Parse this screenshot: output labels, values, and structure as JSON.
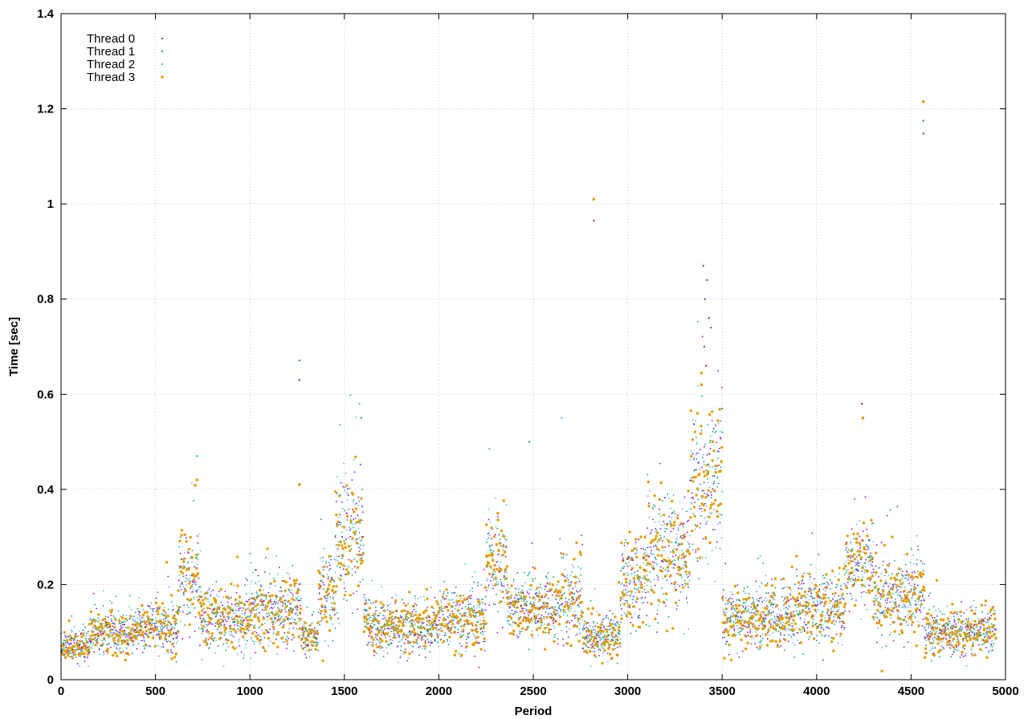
{
  "chart_data": {
    "type": "scatter",
    "title": "",
    "xlabel": "Period",
    "ylabel": "Time [sec]",
    "xlim": [
      0,
      5000
    ],
    "ylim": [
      0,
      1.4
    ],
    "xticks": [
      "0",
      "500",
      "1000",
      "1500",
      "2000",
      "2500",
      "3000",
      "3500",
      "4000",
      "4500",
      "5000"
    ],
    "yticks": [
      "0",
      "0.2",
      "0.4",
      "0.6",
      "0.8",
      "1",
      "1.2",
      "1.4"
    ],
    "grid": true,
    "legend_position": "top-left",
    "n_periods": 4950,
    "series": [
      {
        "name": "Thread 0",
        "color": "#9400d3",
        "marker": "dot-small"
      },
      {
        "name": "Thread 1",
        "color": "#009e73",
        "marker": "dot-small"
      },
      {
        "name": "Thread 2",
        "color": "#56b4e9",
        "marker": "dot-small"
      },
      {
        "name": "Thread 3",
        "color": "#e69f00",
        "marker": "dot-large"
      }
    ],
    "regimes": [
      {
        "x": [
          0,
          150
        ],
        "median": 0.07,
        "spread": 0.03
      },
      {
        "x": [
          150,
          400
        ],
        "median": 0.1,
        "spread": 0.04
      },
      {
        "x": [
          400,
          620
        ],
        "median": 0.115,
        "spread": 0.045
      },
      {
        "x": [
          620,
          740
        ],
        "median": 0.2,
        "spread": 0.09
      },
      {
        "x": [
          740,
          1000
        ],
        "median": 0.13,
        "spread": 0.06
      },
      {
        "x": [
          1000,
          1270
        ],
        "median": 0.15,
        "spread": 0.07
      },
      {
        "x": [
          1270,
          1360
        ],
        "median": 0.09,
        "spread": 0.03
      },
      {
        "x": [
          1360,
          1450
        ],
        "median": 0.17,
        "spread": 0.08
      },
      {
        "x": [
          1450,
          1600
        ],
        "median": 0.3,
        "spread": 0.12
      },
      {
        "x": [
          1600,
          1650
        ],
        "median": 0.12,
        "spread": 0.05
      },
      {
        "x": [
          1650,
          2000
        ],
        "median": 0.11,
        "spread": 0.05
      },
      {
        "x": [
          2000,
          2250
        ],
        "median": 0.13,
        "spread": 0.06
      },
      {
        "x": [
          2250,
          2360
        ],
        "median": 0.24,
        "spread": 0.09
      },
      {
        "x": [
          2360,
          2640
        ],
        "median": 0.15,
        "spread": 0.06
      },
      {
        "x": [
          2640,
          2760
        ],
        "median": 0.17,
        "spread": 0.08
      },
      {
        "x": [
          2760,
          2960
        ],
        "median": 0.09,
        "spread": 0.04
      },
      {
        "x": [
          2960,
          3100
        ],
        "median": 0.2,
        "spread": 0.09
      },
      {
        "x": [
          3100,
          3260
        ],
        "median": 0.27,
        "spread": 0.12
      },
      {
        "x": [
          3260,
          3330
        ],
        "median": 0.25,
        "spread": 0.1
      },
      {
        "x": [
          3330,
          3500
        ],
        "median": 0.42,
        "spread": 0.15
      },
      {
        "x": [
          3500,
          3880
        ],
        "median": 0.13,
        "spread": 0.06
      },
      {
        "x": [
          3880,
          4150
        ],
        "median": 0.15,
        "spread": 0.07
      },
      {
        "x": [
          4150,
          4300
        ],
        "median": 0.24,
        "spread": 0.08
      },
      {
        "x": [
          4300,
          4570
        ],
        "median": 0.18,
        "spread": 0.08
      },
      {
        "x": [
          4570,
          4950
        ],
        "median": 0.1,
        "spread": 0.045
      }
    ],
    "outliers": [
      {
        "x": 1262,
        "y": 0.671,
        "series": 1
      },
      {
        "x": 1262,
        "y": 0.63,
        "series": 0
      },
      {
        "x": 1262,
        "y": 0.41,
        "series": 3
      },
      {
        "x": 2820,
        "y": 1.01,
        "series": 3
      },
      {
        "x": 2820,
        "y": 0.965,
        "series": 0
      },
      {
        "x": 4565,
        "y": 1.215,
        "series": 3
      },
      {
        "x": 4565,
        "y": 1.175,
        "series": 1
      },
      {
        "x": 4565,
        "y": 1.148,
        "series": 0
      },
      {
        "x": 3400,
        "y": 0.87,
        "series": 0
      },
      {
        "x": 3420,
        "y": 0.84,
        "series": 0
      },
      {
        "x": 3410,
        "y": 0.8,
        "series": 0
      },
      {
        "x": 3430,
        "y": 0.76,
        "series": 0
      },
      {
        "x": 3440,
        "y": 0.74,
        "series": 0
      },
      {
        "x": 3405,
        "y": 0.7,
        "series": 0
      },
      {
        "x": 3415,
        "y": 0.66,
        "series": 0
      },
      {
        "x": 3390,
        "y": 0.62,
        "series": 3
      },
      {
        "x": 3370,
        "y": 0.56,
        "series": 3
      },
      {
        "x": 1580,
        "y": 0.58,
        "series": 2
      },
      {
        "x": 1590,
        "y": 0.55,
        "series": 1
      },
      {
        "x": 4240,
        "y": 0.58,
        "series": 0
      },
      {
        "x": 4245,
        "y": 0.55,
        "series": 3
      },
      {
        "x": 2650,
        "y": 0.55,
        "series": 2
      },
      {
        "x": 2480,
        "y": 0.5,
        "series": 1
      },
      {
        "x": 720,
        "y": 0.47,
        "series": 1
      },
      {
        "x": 720,
        "y": 0.42,
        "series": 3
      },
      {
        "x": 3500,
        "y": 0.57,
        "series": 1
      }
    ]
  }
}
